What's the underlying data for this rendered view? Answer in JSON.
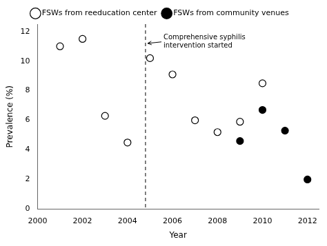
{
  "chart_data": {
    "type": "scatter",
    "xlabel": "Year",
    "ylabel": "Prevalence (%)",
    "series": [
      {
        "name": "FSWs from reeducation center",
        "color": "#000000",
        "marker": "open_circle",
        "x": [
          2001,
          2002,
          2003,
          2004,
          2005,
          2006,
          2007,
          2008,
          2009,
          2010
        ],
        "values": [
          11.0,
          11.5,
          6.3,
          4.5,
          10.2,
          9.1,
          6.0,
          5.2,
          5.9,
          8.5
        ]
      },
      {
        "name": "FSWs from community venues",
        "color": "#000000",
        "marker": "filled_circle",
        "x": [
          2009,
          2010,
          2011,
          2012
        ],
        "values": [
          4.6,
          6.7,
          5.3,
          2.0
        ]
      }
    ],
    "vlines": [
      {
        "x": 2004.8,
        "color": "#000000",
        "line_style": "dashed"
      }
    ],
    "annotations": [
      {
        "text": "Comprehensive syphilis\nintervention started",
        "x": 2005.6,
        "y": 11.3,
        "arrow_x": 2004.9,
        "arrow_y": 11.2,
        "color": "#000000"
      }
    ],
    "xlim": [
      2000,
      2012.5
    ],
    "ylim": [
      0,
      12.5
    ],
    "xticks": [
      2000,
      2002,
      2004,
      2006,
      2008,
      2010,
      2012
    ],
    "yticks": [
      0,
      2,
      4,
      6,
      8,
      10,
      12
    ],
    "grid": false,
    "legend": "top"
  }
}
